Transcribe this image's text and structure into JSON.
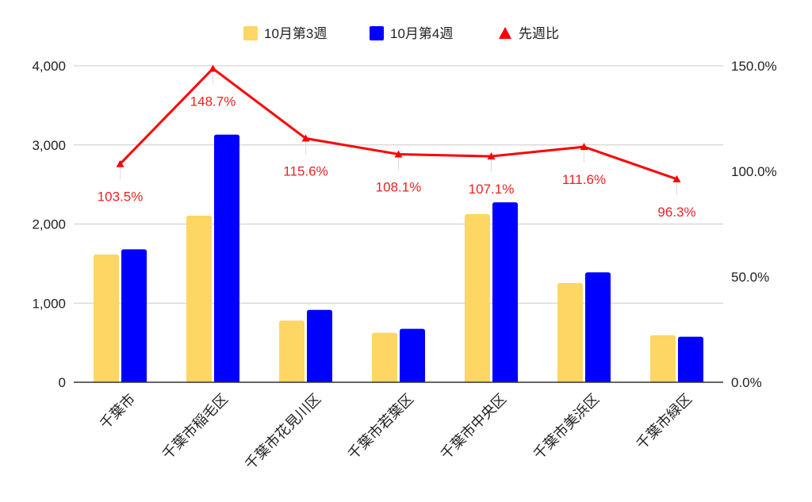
{
  "chart_data": {
    "type": "bar",
    "title": "",
    "categories": [
      "千葉市",
      "千葉市稲毛区",
      "千葉市花見川区",
      "千葉市若葉区",
      "千葉市中央区",
      "千葉市美浜区",
      "千葉市緑区"
    ],
    "series": [
      {
        "name": "10月第3週",
        "type": "bar",
        "axis": "left",
        "color": "#fdd663",
        "values": [
          1615,
          2105,
          780,
          625,
          2125,
          1255,
          595
        ]
      },
      {
        "name": "10月第4週",
        "type": "bar",
        "axis": "left",
        "color": "#0000ff",
        "values": [
          1680,
          3130,
          915,
          675,
          2275,
          1390,
          575
        ]
      },
      {
        "name": "先週比",
        "type": "line",
        "axis": "right",
        "color": "#ff0000",
        "values": [
          103.5,
          148.7,
          115.6,
          108.1,
          107.1,
          111.6,
          96.3
        ],
        "labels": [
          "103.5%",
          "148.7%",
          "115.6%",
          "108.1%",
          "107.1%",
          "111.6%",
          "96.3%"
        ]
      }
    ],
    "y_left": {
      "ylim": [
        0,
        4000
      ],
      "ticks": [
        "0",
        "1,000",
        "2,000",
        "3,000",
        "4,000"
      ]
    },
    "y_right": {
      "ylim": [
        0,
        150
      ],
      "ticks": [
        "0.0%",
        "50.0%",
        "100.0%",
        "150.0%"
      ]
    },
    "grid": true,
    "legend": "top-center"
  }
}
